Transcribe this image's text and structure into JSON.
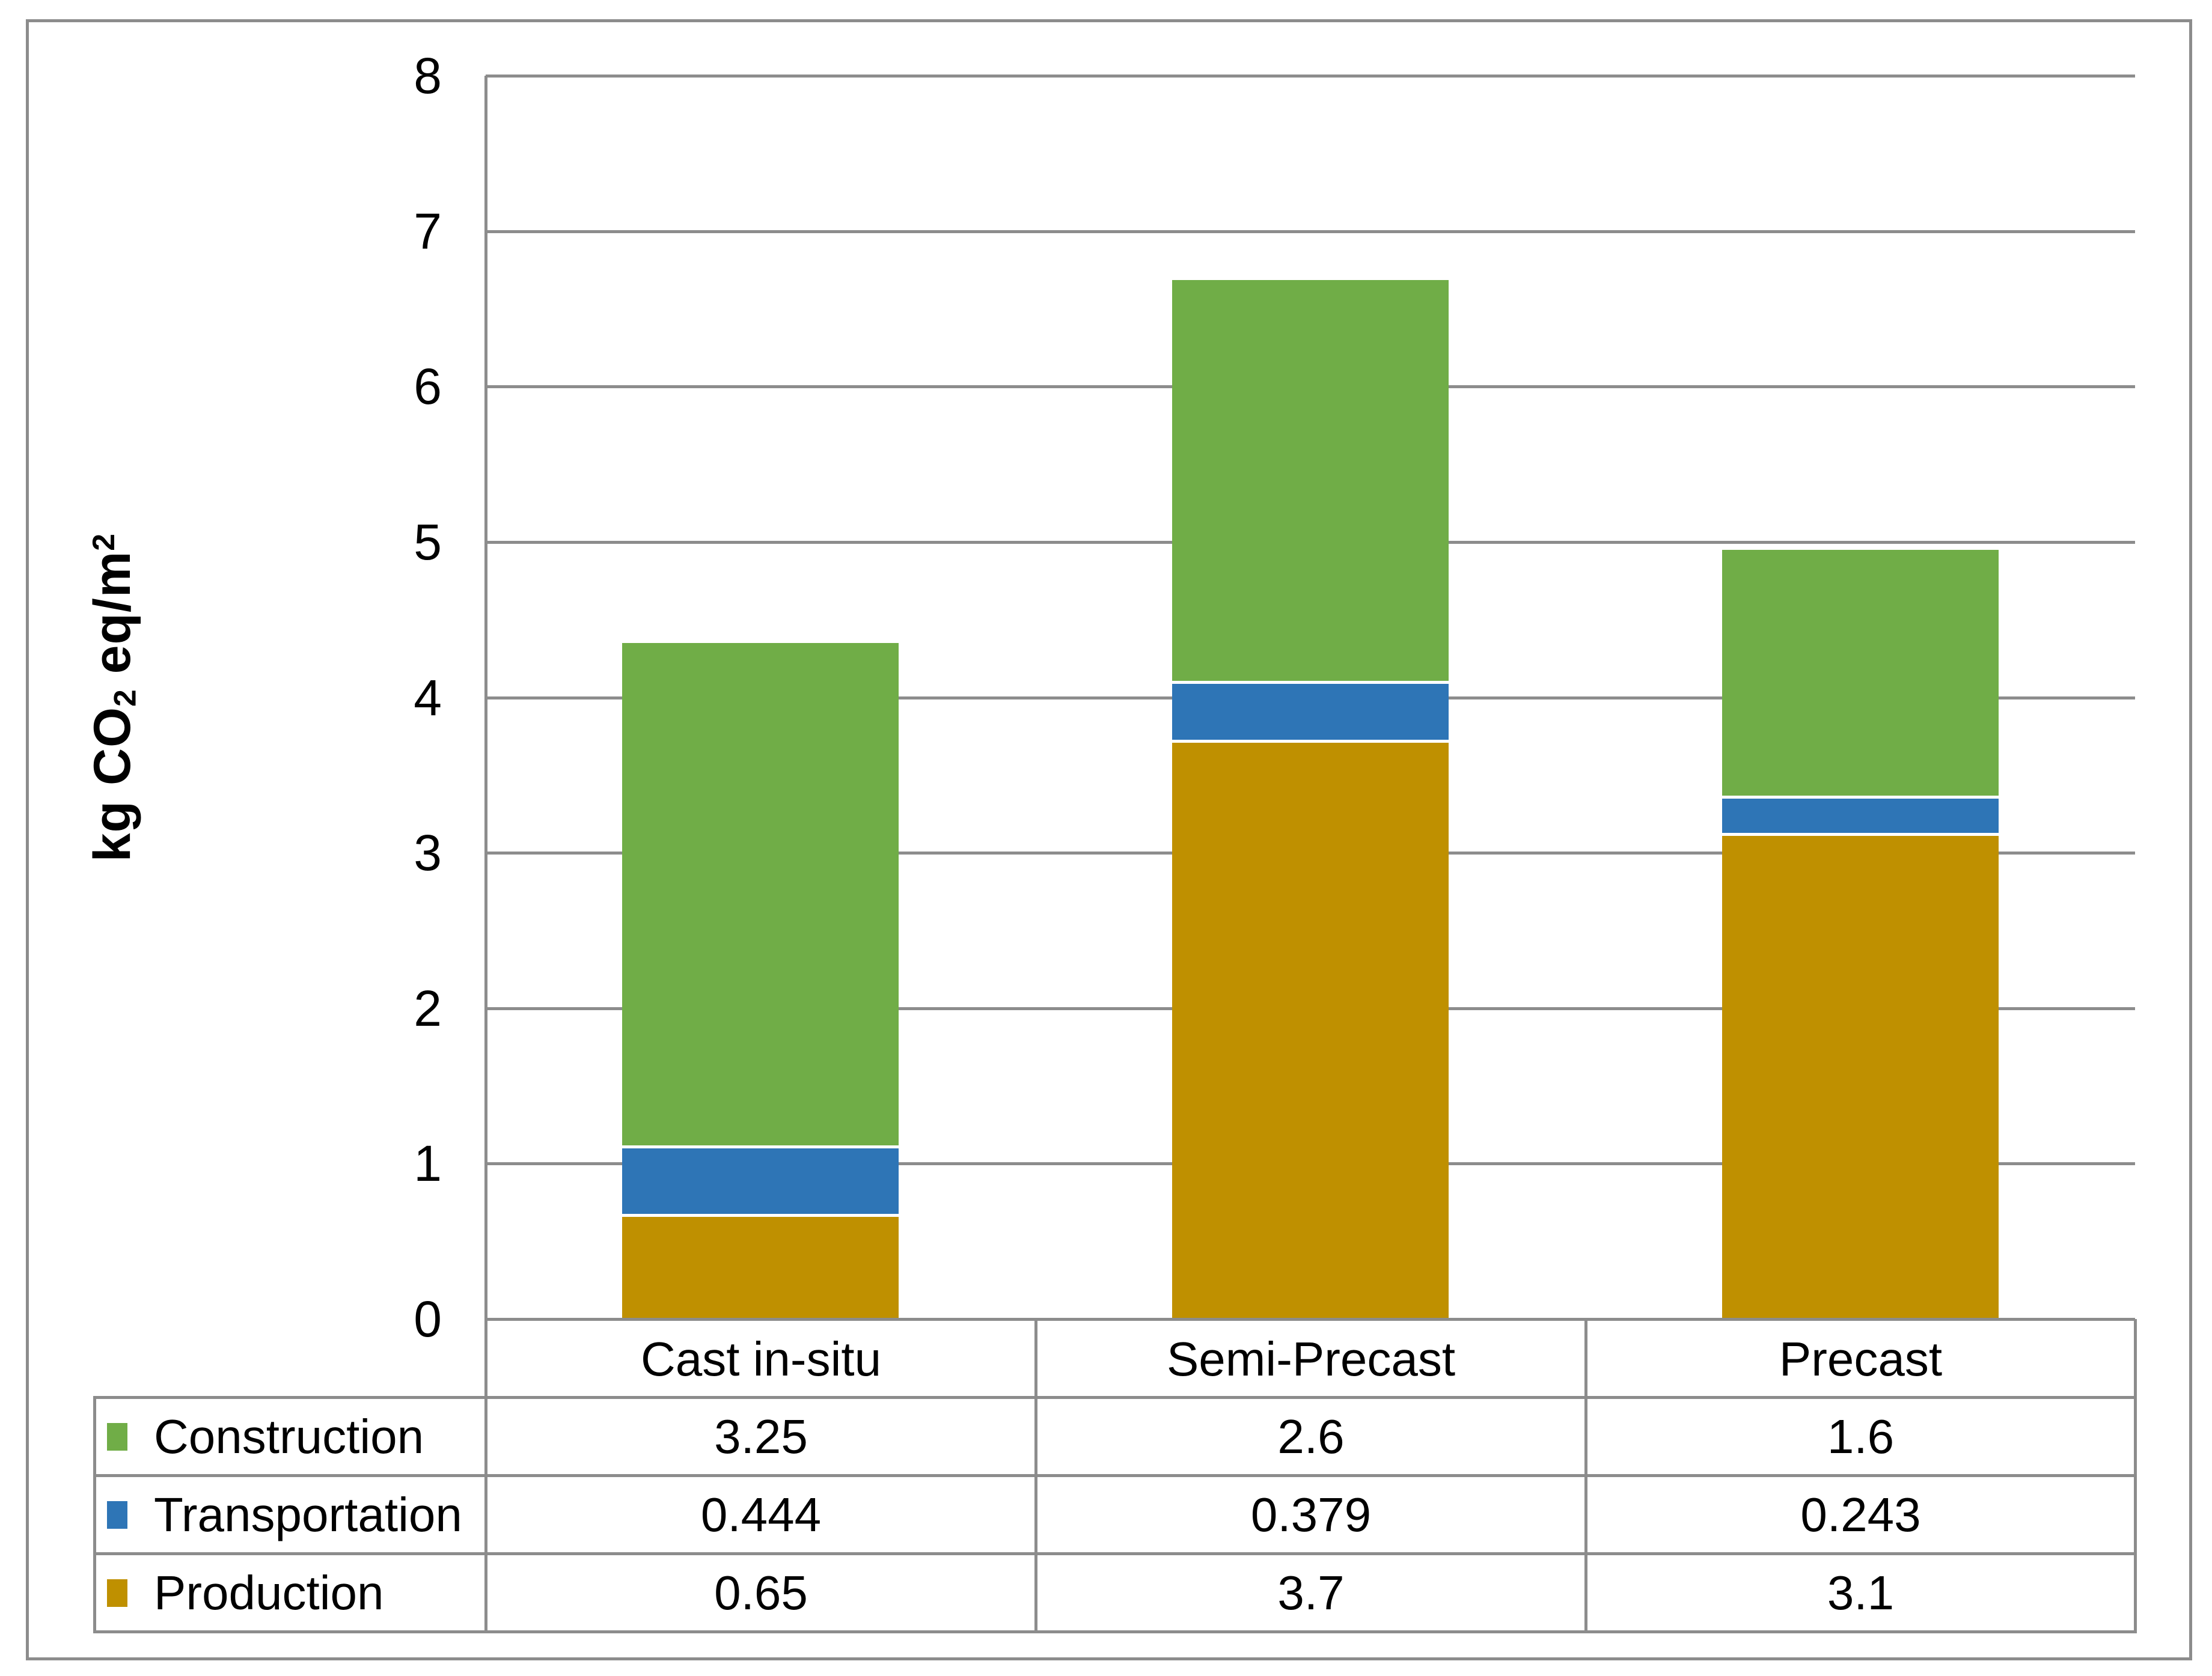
{
  "chart_data": {
    "type": "bar",
    "stacked": true,
    "categories": [
      "Cast in-situ",
      "Semi-Precast",
      "Precast"
    ],
    "series": [
      {
        "name": "Production",
        "color": "#BF9000",
        "values": [
          0.65,
          3.7,
          3.1
        ]
      },
      {
        "name": "Transportation",
        "color": "#2E75B6",
        "values": [
          0.444,
          0.379,
          0.243
        ]
      },
      {
        "name": "Construction",
        "color": "#70AD47",
        "values": [
          3.25,
          2.6,
          1.6
        ]
      }
    ],
    "ylabel": "kg CO2 eq/m2",
    "ylim": [
      0,
      8
    ],
    "ytick_step": 1,
    "grid": true,
    "gridline_color": "#8C8C8C",
    "legend_position": "data-table-left"
  },
  "y_axis_title": {
    "pre": "kg CO",
    "sub": "2",
    "mid": " eq/m",
    "sup": "2"
  },
  "data_table": {
    "header": [
      "Cast in-situ",
      "Semi-Precast",
      "Precast"
    ],
    "rows": [
      {
        "label": "Construction",
        "values": [
          "3.25",
          "2.6",
          "1.6"
        ]
      },
      {
        "label": "Transportation",
        "values": [
          "0.444",
          "0.379",
          "0.243"
        ]
      },
      {
        "label": "Production",
        "values": [
          "0.65",
          "3.7",
          "3.1"
        ]
      }
    ]
  }
}
